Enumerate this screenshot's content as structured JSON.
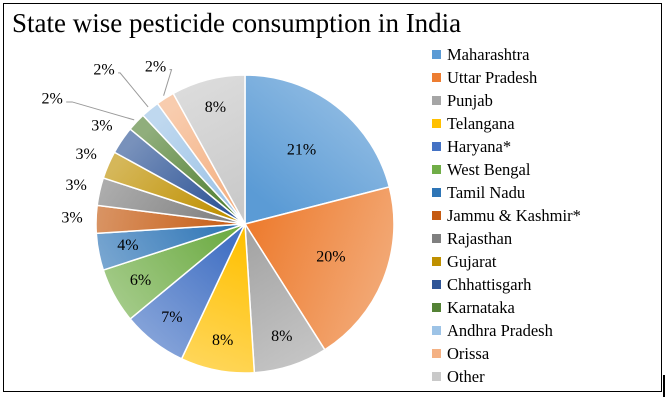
{
  "chart_data": {
    "type": "pie",
    "title": "State wise pesticide consumption in India",
    "labels": [
      "Maharashtra",
      "Uttar Pradesh",
      "Punjab",
      "Telangana",
      "Haryana*",
      "West Bengal",
      "Tamil Nadu",
      "Jammu & Kashmir*",
      "Rajasthan",
      "Gujarat",
      "Chhattisgarh",
      "Karnataka",
      "Andhra Pradesh",
      "Orissa",
      "Other"
    ],
    "values": [
      21,
      20,
      8,
      8,
      7,
      6,
      4,
      3,
      3,
      3,
      3,
      2,
      2,
      2,
      8
    ],
    "data_labels": [
      "21%",
      "20%",
      "8%",
      "8%",
      "7%",
      "6%",
      "4%",
      "3%",
      "3%",
      "3%",
      "3%",
      "2%",
      "2%",
      "2%",
      "8%"
    ],
    "colors": [
      "#5B9BD5",
      "#ED7D31",
      "#A5A5A5",
      "#FFC000",
      "#4472C4",
      "#70AD47",
      "#2E75B6",
      "#C55A11",
      "#7F7F7F",
      "#BF9000",
      "#2F5597",
      "#548235",
      "#9DC3E6",
      "#F4B183",
      "#C9C9C9"
    ],
    "legend_position": "right"
  }
}
